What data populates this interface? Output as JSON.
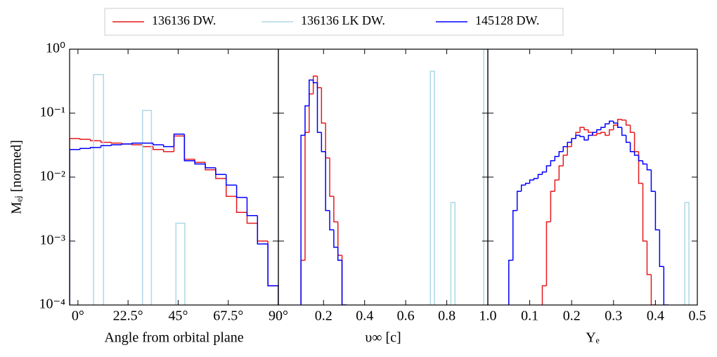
{
  "chart_data": [
    {
      "type": "histogram",
      "legend": "top",
      "yscale": "log",
      "ylabel": "Mₑⱼ [normed]",
      "xlabel": "Angle from orbital plane",
      "xlim": [
        -3.75,
        90
      ],
      "ylim": [
        0.0001,
        1
      ],
      "xticks": [
        {
          "value": 0,
          "label": "0°"
        },
        {
          "value": 22.5,
          "label": "22.5°"
        },
        {
          "value": 45,
          "label": "45°"
        },
        {
          "value": 67.5,
          "label": "67.5°"
        },
        {
          "value": 90,
          "label": "90°"
        }
      ],
      "yticks": [
        {
          "value": 0.0001,
          "label": "10⁻⁴"
        },
        {
          "value": 0.001,
          "label": "10⁻³"
        },
        {
          "value": 0.01,
          "label": "10⁻²"
        },
        {
          "value": 0.1,
          "label": "10⁻¹"
        },
        {
          "value": 1,
          "label": "10⁰"
        }
      ],
      "series": [
        {
          "name": "136136 DW.",
          "color": "#e41a1c",
          "bins": [
            -3.75,
            0.9375,
            5.625,
            10.3125,
            15,
            19.6875,
            24.375,
            29.0625,
            33.75,
            38.4375,
            43.125,
            47.8125,
            52.5,
            57.1875,
            61.875,
            66.5625,
            71.25,
            75.9375,
            80.625,
            85.3125,
            90
          ],
          "values": [
            0.04,
            0.039,
            0.037,
            0.035,
            0.034,
            0.033,
            0.032,
            0.03,
            0.027,
            0.025,
            0.044,
            0.019,
            0.017,
            0.013,
            0.0095,
            0.005,
            0.0028,
            0.0019,
            0.001,
            0.0002
          ]
        },
        {
          "name": "136136 LK DW.",
          "color": "#add8e6",
          "bins": [
            7,
            11.5,
            29,
            33,
            44,
            48
          ],
          "values": [
            0.4,
            null,
            0.11,
            null,
            0.0019
          ]
        },
        {
          "name": "145128 DW.",
          "color": "#0000ff",
          "bins": [
            -3.75,
            0.9375,
            5.625,
            10.3125,
            15,
            19.6875,
            24.375,
            29.0625,
            33.75,
            38.4375,
            43.125,
            47.8125,
            52.5,
            57.1875,
            61.875,
            66.5625,
            71.25,
            75.9375,
            80.625,
            85.3125,
            90
          ],
          "values": [
            0.027,
            0.028,
            0.029,
            0.031,
            0.032,
            0.033,
            0.034,
            0.034,
            0.032,
            0.03,
            0.047,
            0.018,
            0.016,
            0.014,
            0.011,
            0.0075,
            0.0048,
            0.0025,
            0.0009,
            0.0002
          ]
        }
      ]
    },
    {
      "type": "histogram",
      "yscale": "log",
      "xlabel": "υ∞ [c]",
      "xlim": [
        -0.02,
        1.0
      ],
      "ylim": [
        0.0001,
        1
      ],
      "xticks": [
        0.2,
        0.4,
        0.6,
        0.8,
        {
          "value": 1,
          "label": "1.0"
        }
      ],
      "series": [
        {
          "name": "136136 DW.",
          "color": "#e41a1c",
          "bins": [
            0.09,
            0.11,
            0.13,
            0.15,
            0.17,
            0.19,
            0.21,
            0.23,
            0.25,
            0.27,
            0.29,
            0.31
          ],
          "values": [
            0.0005,
            0.05,
            0.2,
            0.38,
            0.25,
            0.07,
            0.02,
            0.005,
            0.002,
            0.0006,
            0.0001
          ]
        },
        {
          "name": "136136 LK DW.",
          "color": "#add8e6",
          "bins": [
            0.72,
            0.74,
            0.82,
            0.84,
            0.98,
            1.0
          ],
          "values": [
            0.45,
            null,
            0.004,
            null,
            1.0
          ]
        },
        {
          "name": "145128 DW.",
          "color": "#0000ff",
          "bins": [
            0.09,
            0.11,
            0.13,
            0.15,
            0.17,
            0.19,
            0.21,
            0.23,
            0.25,
            0.27,
            0.29,
            0.31
          ],
          "values": [
            0.045,
            0.13,
            0.33,
            0.3,
            0.05,
            0.025,
            0.003,
            0.0015,
            0.0008,
            0.0005,
            0.0001
          ]
        }
      ]
    },
    {
      "type": "histogram",
      "yscale": "log",
      "xlabel": "Yₑ",
      "xlim": [
        0,
        0.5
      ],
      "ylim": [
        0.0001,
        1
      ],
      "xticks": [
        0.1,
        0.2,
        0.3,
        0.4,
        0.5
      ],
      "series": [
        {
          "name": "136136 DW.",
          "color": "#e41a1c",
          "bins": [
            0.13,
            0.14,
            0.15,
            0.16,
            0.17,
            0.18,
            0.19,
            0.2,
            0.21,
            0.22,
            0.23,
            0.24,
            0.25,
            0.26,
            0.27,
            0.28,
            0.29,
            0.3,
            0.31,
            0.32,
            0.33,
            0.34,
            0.35,
            0.36,
            0.37,
            0.38,
            0.39,
            0.4
          ],
          "values": [
            0.0002,
            0.002,
            0.006,
            0.009,
            0.015,
            0.022,
            0.03,
            0.04,
            0.05,
            0.06,
            0.055,
            0.05,
            0.045,
            0.048,
            0.05,
            0.045,
            0.055,
            0.065,
            0.08,
            0.078,
            0.065,
            0.05,
            0.025,
            0.008,
            0.001,
            0.0003,
            0.0001
          ]
        },
        {
          "name": "136136 LK DW.",
          "color": "#add8e6",
          "bins": [
            0.47,
            0.48
          ],
          "values": [
            0.004
          ]
        },
        {
          "name": "145128 DW.",
          "color": "#0000ff",
          "bins": [
            0.05,
            0.06,
            0.07,
            0.08,
            0.09,
            0.1,
            0.11,
            0.12,
            0.13,
            0.14,
            0.15,
            0.16,
            0.17,
            0.18,
            0.19,
            0.2,
            0.21,
            0.22,
            0.23,
            0.24,
            0.25,
            0.26,
            0.27,
            0.28,
            0.29,
            0.3,
            0.31,
            0.32,
            0.33,
            0.34,
            0.35,
            0.36,
            0.37,
            0.38,
            0.39,
            0.4,
            0.41,
            0.42,
            0.43
          ],
          "values": [
            0.0005,
            0.003,
            0.006,
            0.0075,
            0.008,
            0.009,
            0.0095,
            0.011,
            0.012,
            0.015,
            0.018,
            0.021,
            0.025,
            0.03,
            0.035,
            0.04,
            0.045,
            0.043,
            0.038,
            0.045,
            0.05,
            0.055,
            0.06,
            0.068,
            0.075,
            0.07,
            0.06,
            0.045,
            0.035,
            0.025,
            0.022,
            0.018,
            0.016,
            0.013,
            0.006,
            0.0015,
            0.0004,
            0.0001
          ]
        }
      ]
    }
  ]
}
